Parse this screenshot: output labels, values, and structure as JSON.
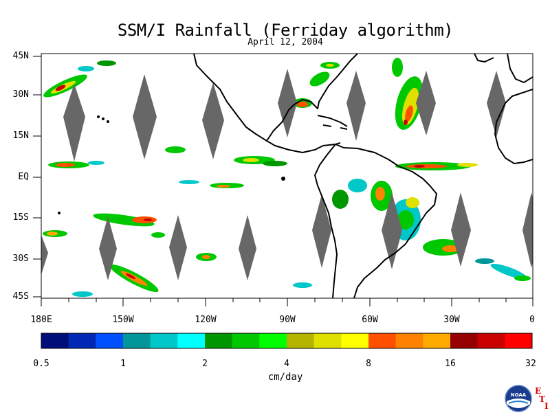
{
  "title": "SSM/I Rainfall (Ferriday algorithm)",
  "subtitle": "April 12, 2004",
  "lat_labels": [
    "45N",
    "30N",
    "15N",
    "EQ",
    "15S",
    "30S",
    "45S"
  ],
  "lon_labels": [
    "180E",
    "150W",
    "120W",
    "90W",
    "60W",
    "30W",
    "0"
  ],
  "colorbar": {
    "units": "cm/day",
    "tick_labels": [
      "0.5",
      "1",
      "2",
      "4",
      "8",
      "16",
      "32"
    ],
    "colors": [
      "#000e7a",
      "#0028b4",
      "#0050ff",
      "#00969a",
      "#00c8c8",
      "#00ffff",
      "#009600",
      "#00c800",
      "#00ff00",
      "#b4b400",
      "#e0e000",
      "#ffff00",
      "#ff5000",
      "#ff8200",
      "#ffaa00",
      "#960000",
      "#c80000",
      "#ff0000"
    ]
  },
  "logo": {
    "text": "NOAA",
    "letters": [
      "E",
      "T",
      "I"
    ]
  }
}
